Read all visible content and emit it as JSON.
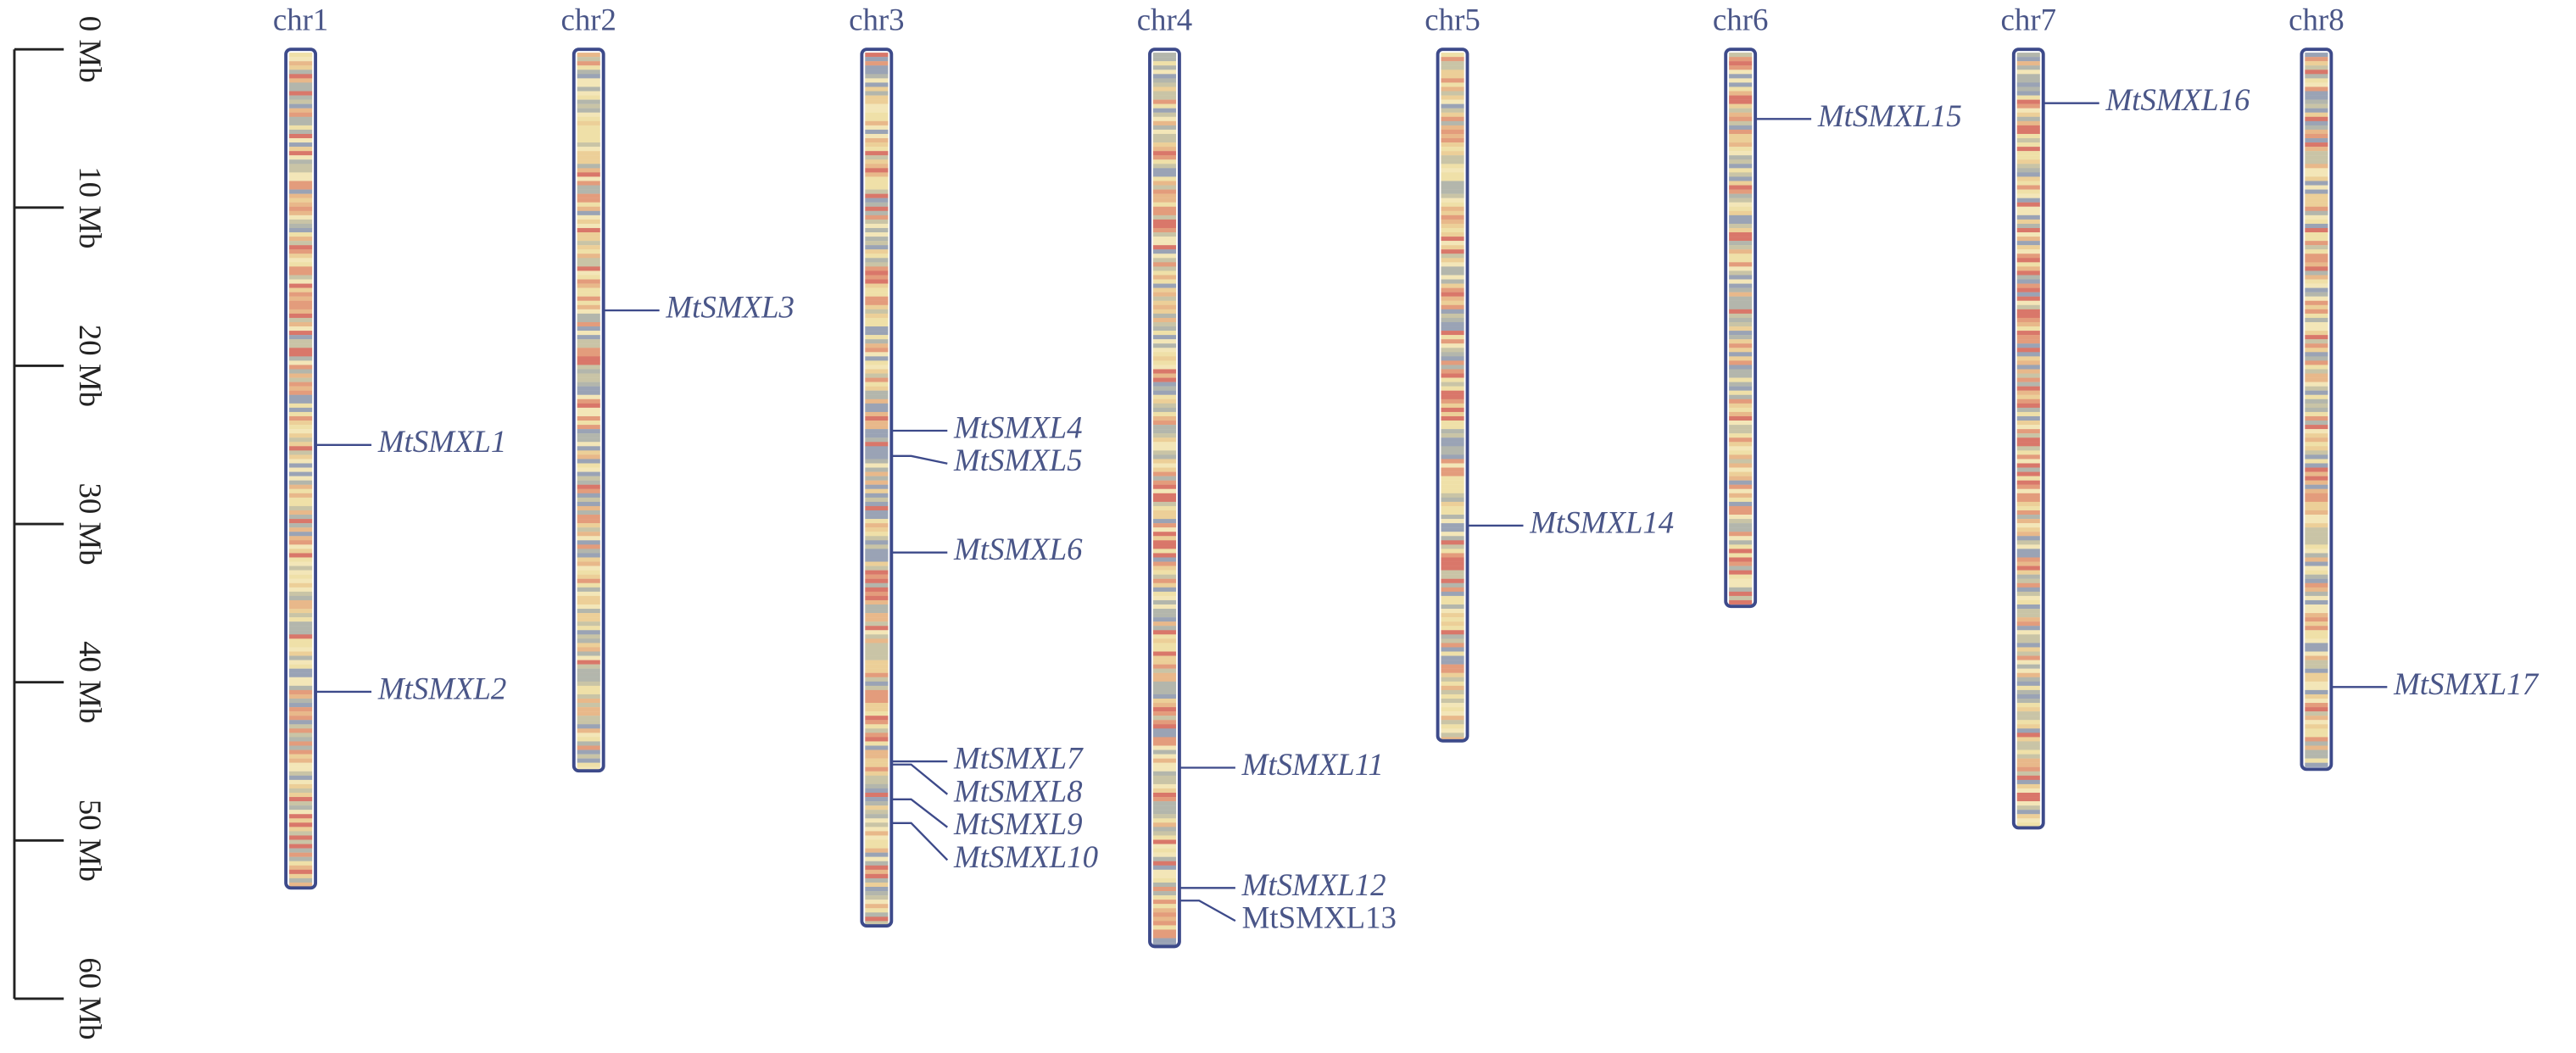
{
  "scale": {
    "lim": [
      0,
      60
    ],
    "ticks": [
      {
        "value": 0,
        "label": "0 Mb"
      },
      {
        "value": 10,
        "label": "10 Mb"
      },
      {
        "value": 20,
        "label": "20 Mb"
      },
      {
        "value": 30,
        "label": "30 Mb"
      },
      {
        "value": 40,
        "label": "40 Mb"
      },
      {
        "value": 50,
        "label": "50 Mb"
      },
      {
        "value": 60,
        "label": "60 Mb"
      }
    ]
  },
  "chromosomes": [
    {
      "name": "chr1",
      "length": 53,
      "genes": [
        {
          "name": "MtSMXL1",
          "position": 25.0
        },
        {
          "name": "MtSMXL2",
          "position": 40.6
        }
      ]
    },
    {
      "name": "chr2",
      "length": 45.6,
      "genes": [
        {
          "name": "MtSMXL3",
          "position": 16.5
        }
      ]
    },
    {
      "name": "chr3",
      "length": 55.4,
      "genes": [
        {
          "name": "MtSMXL4",
          "position": 24.1
        },
        {
          "name": "MtSMXL5",
          "position": 25.7
        },
        {
          "name": "MtSMXL6",
          "position": 31.8
        },
        {
          "name": "MtSMXL7",
          "position": 45.0
        },
        {
          "name": "MtSMXL8",
          "position": 45.2
        },
        {
          "name": "MtSMXL9",
          "position": 47.4
        },
        {
          "name": "MtSMXL10",
          "position": 48.9
        }
      ]
    },
    {
      "name": "chr4",
      "length": 56.7,
      "genes": [
        {
          "name": "MtSMXL11",
          "position": 45.4
        },
        {
          "name": "MtSMXL12",
          "position": 53.0
        },
        {
          "name": "MtSMXL13",
          "position": 53.8,
          "style": "normal"
        }
      ]
    },
    {
      "name": "chr5",
      "length": 43.7,
      "genes": [
        {
          "name": "MtSMXL14",
          "position": 30.1
        }
      ]
    },
    {
      "name": "chr6",
      "length": 35.2,
      "genes": [
        {
          "name": "MtSMXL15",
          "position": 4.4
        }
      ]
    },
    {
      "name": "chr7",
      "length": 49.2,
      "genes": [
        {
          "name": "MtSMXL16",
          "position": 3.4
        }
      ]
    },
    {
      "name": "chr8",
      "length": 45.5,
      "genes": [
        {
          "name": "MtSMXL17",
          "position": 40.3
        }
      ]
    }
  ]
}
